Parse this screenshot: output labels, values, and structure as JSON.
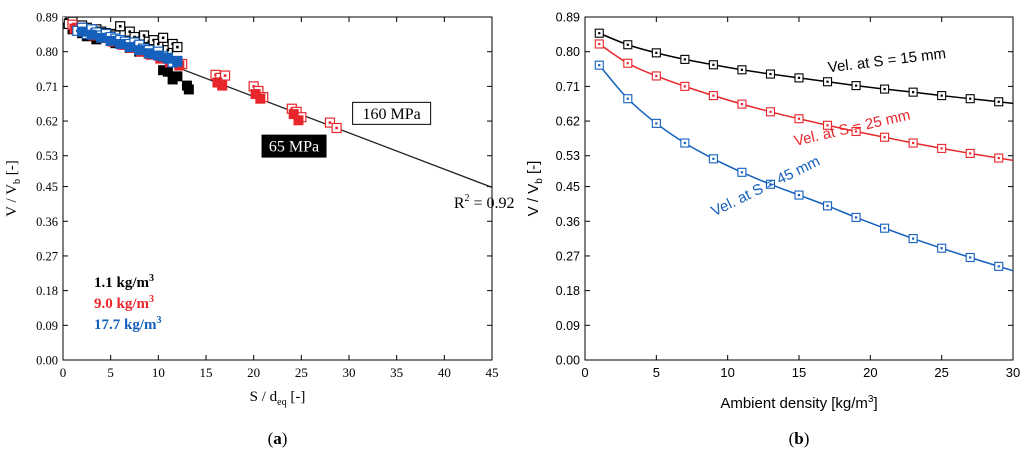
{
  "chart_data": [
    {
      "type": "scatter",
      "panel_label": "a",
      "xlabel": "S / d",
      "xlabel_sub": "eq",
      "xlabel_unit": "[-]",
      "ylabel": "V / V",
      "ylabel_sub": "b",
      "ylabel_unit": "[-]",
      "xlim": [
        0,
        45
      ],
      "ylim": [
        0,
        0.89
      ],
      "xticks": [
        0,
        5,
        10,
        15,
        20,
        25,
        30,
        35,
        40,
        45
      ],
      "yticks": [
        "0.00",
        "0.09",
        "0.18",
        "0.27",
        "0.36",
        "0.45",
        "0.53",
        "0.62",
        "0.71",
        "0.80",
        "0.89"
      ],
      "legend": [
        {
          "label": "1.1 kg/m",
          "sup": "3",
          "color": "#000000"
        },
        {
          "label": "9.0 kg/m",
          "sup": "3",
          "color": "#e8262b"
        },
        {
          "label": "17.7 kg/m",
          "sup": "3",
          "color": "#1560bd"
        }
      ],
      "fit_line": {
        "x": [
          0,
          45
        ],
        "y": [
          0.872,
          0.448
        ],
        "color": "#222222"
      },
      "annotations": [
        {
          "text": "160 MPa",
          "style": "boxed-white",
          "x": 30.8,
          "y": 0.64
        },
        {
          "text": "65 MPa",
          "style": "boxed-black",
          "x": 27.8,
          "y": 0.555
        },
        {
          "text": "R",
          "sup": "2",
          "tail": " = 0.92",
          "style": "plain",
          "x": 41,
          "y": 0.395
        }
      ],
      "series": [
        {
          "name": "160 MPa, 1.1 kg/m3",
          "color": "#000000",
          "filled": false,
          "x": [
            0.3,
            0.6,
            1.0,
            1.4,
            2.0,
            2.5,
            3.0,
            3.5,
            4.0,
            4.5,
            5.0,
            5.5,
            6.0,
            7.0,
            7.5,
            8.0,
            8.5,
            9.0,
            9.5,
            10.0,
            10.5,
            11.0,
            11.5,
            12.0
          ],
          "y": [
            0.886,
            0.872,
            0.878,
            0.866,
            0.868,
            0.862,
            0.856,
            0.858,
            0.852,
            0.848,
            0.846,
            0.842,
            0.866,
            0.852,
            0.838,
            0.826,
            0.842,
            0.826,
            0.83,
            0.82,
            0.836,
            0.804,
            0.82,
            0.812
          ]
        },
        {
          "name": "65 MPa, 1.1 kg/m3",
          "color": "#000000",
          "filled": true,
          "x": [
            1.0,
            2.0,
            2.5,
            3.0,
            3.5,
            4.0,
            5.0,
            5.5,
            6.0,
            6.5,
            7.0,
            7.5,
            8.0,
            8.5,
            9.0,
            10.0,
            10.5,
            11.0,
            11.5,
            12.0,
            13.0,
            13.2
          ],
          "y": [
            0.858,
            0.848,
            0.84,
            0.842,
            0.832,
            0.836,
            0.828,
            0.822,
            0.825,
            0.818,
            0.81,
            0.822,
            0.8,
            0.812,
            0.795,
            0.79,
            0.752,
            0.748,
            0.728,
            0.736,
            0.712,
            0.702
          ]
        },
        {
          "name": "160 MPa, 9.0 kg/m3",
          "color": "#e8262b",
          "filled": false,
          "x": [
            1.0,
            1.5,
            2.0,
            3.0,
            4.0,
            5.0,
            6.0,
            7.0,
            8.0,
            9.0,
            10.0,
            11.0,
            12.0,
            12.5,
            16.0,
            16.5,
            17.0,
            20.0,
            20.5,
            21.0,
            24.0,
            24.5,
            25.0,
            28.0,
            28.7
          ],
          "y": [
            0.87,
            0.862,
            0.858,
            0.85,
            0.842,
            0.832,
            0.826,
            0.816,
            0.808,
            0.8,
            0.792,
            0.782,
            0.774,
            0.768,
            0.74,
            0.732,
            0.738,
            0.71,
            0.698,
            0.682,
            0.652,
            0.644,
            0.63,
            0.616,
            0.602
          ]
        },
        {
          "name": "65 MPa, 9.0 kg/m3",
          "color": "#e8262b",
          "filled": true,
          "x": [
            1.2,
            2.2,
            3.2,
            4.2,
            5.2,
            6.2,
            7.2,
            8.2,
            9.2,
            10.2,
            11.2,
            12.2,
            16.2,
            16.7,
            20.2,
            20.7,
            24.2,
            24.7
          ],
          "y": [
            0.86,
            0.852,
            0.842,
            0.836,
            0.826,
            0.818,
            0.81,
            0.8,
            0.792,
            0.782,
            0.772,
            0.764,
            0.72,
            0.712,
            0.69,
            0.678,
            0.638,
            0.622
          ]
        },
        {
          "name": "160 MPa, 17.7 kg/m3",
          "color": "#1560bd",
          "filled": false,
          "x": [
            1.5,
            2.0,
            2.5,
            3.0,
            3.5,
            4.0,
            4.5,
            5.0,
            5.5,
            6.0,
            6.5,
            7.0,
            7.5,
            8.0,
            8.5,
            9.0,
            9.5,
            10.0,
            10.5,
            11.0,
            11.5,
            12.0
          ],
          "y": [
            0.854,
            0.862,
            0.846,
            0.858,
            0.85,
            0.842,
            0.846,
            0.838,
            0.834,
            0.83,
            0.826,
            0.82,
            0.824,
            0.818,
            0.808,
            0.804,
            0.794,
            0.8,
            0.788,
            0.784,
            0.772,
            0.776
          ]
        },
        {
          "name": "65 MPa, 17.7 kg/m3",
          "color": "#1560bd",
          "filled": true,
          "x": [
            2.0,
            3.0,
            4.0,
            5.0,
            6.0,
            7.0,
            8.0,
            9.0,
            10.0,
            11.0,
            12.0
          ],
          "y": [
            0.852,
            0.844,
            0.836,
            0.828,
            0.82,
            0.812,
            0.804,
            0.796,
            0.79,
            0.782,
            0.774
          ]
        }
      ]
    },
    {
      "type": "line",
      "panel_label": "b",
      "xlabel": "Ambient density [kg/m",
      "xlabel_sup": "3",
      "xlabel_tail": "]",
      "ylabel": "V / V",
      "ylabel_sub": "b",
      "ylabel_unit": "[-]",
      "xlim": [
        0,
        30
      ],
      "ylim": [
        0,
        0.89
      ],
      "xticks": [
        0,
        5,
        10,
        15,
        20,
        25,
        30
      ],
      "yticks": [
        "0.00",
        "0.09",
        "0.18",
        "0.27",
        "0.36",
        "0.45",
        "0.53",
        "0.62",
        "0.71",
        "0.80",
        "0.89"
      ],
      "x": [
        1,
        3,
        5,
        7,
        9,
        11,
        13,
        15,
        17,
        19,
        21,
        23,
        25,
        27,
        29
      ],
      "series": [
        {
          "name": "Vel. at S = 15 mm",
          "color": "#000000",
          "values": [
            0.848,
            0.818,
            0.797,
            0.78,
            0.766,
            0.753,
            0.742,
            0.732,
            0.722,
            0.712,
            0.703,
            0.695,
            0.686,
            0.678,
            0.67
          ],
          "label_pos": {
            "x": 21.2,
            "y": 0.765,
            "angle": -7
          }
        },
        {
          "name": "Vel. at S = 25 mm",
          "color": "#e8262b",
          "values": [
            0.82,
            0.77,
            0.737,
            0.71,
            0.686,
            0.664,
            0.644,
            0.626,
            0.609,
            0.593,
            0.578,
            0.563,
            0.549,
            0.536,
            0.524
          ],
          "label_pos": {
            "x": 18.8,
            "y": 0.59,
            "angle": -13
          }
        },
        {
          "name": "Vel. at S = 45 mm",
          "color": "#1560bd",
          "values": [
            0.765,
            0.678,
            0.614,
            0.563,
            0.522,
            0.487,
            0.456,
            0.428,
            0.4,
            0.37,
            0.342,
            0.315,
            0.29,
            0.266,
            0.243
          ],
          "label_pos": {
            "x": 12.8,
            "y": 0.44,
            "angle": -26
          }
        }
      ]
    }
  ]
}
